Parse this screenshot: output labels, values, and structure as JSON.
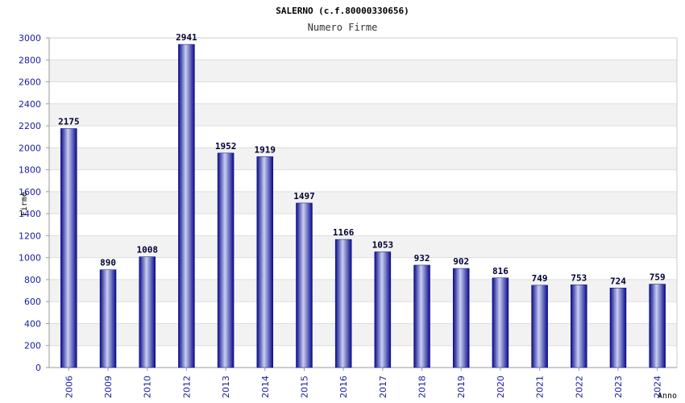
{
  "chart_data": {
    "type": "bar",
    "title": "SALERNO (c.f.80000330656)",
    "subtitle": "Numero Firme",
    "xlabel": "Anno",
    "ylabel": "Firme",
    "ylim": [
      0,
      3000
    ],
    "yticks": [
      0,
      200,
      400,
      600,
      800,
      1000,
      1200,
      1400,
      1600,
      1800,
      2000,
      2200,
      2400,
      2600,
      2800,
      3000
    ],
    "categories": [
      "2006",
      "2009",
      "2010",
      "2012",
      "2013",
      "2014",
      "2015",
      "2016",
      "2017",
      "2018",
      "2019",
      "2020",
      "2021",
      "2022",
      "2023",
      "2024"
    ],
    "values": [
      2175,
      890,
      1008,
      2941,
      1952,
      1919,
      1497,
      1166,
      1053,
      932,
      902,
      816,
      749,
      753,
      724,
      759
    ],
    "grid": true,
    "bar_color": "#1a1aa6",
    "label_color": "#000033",
    "tick_color": "#1a1aa6"
  }
}
